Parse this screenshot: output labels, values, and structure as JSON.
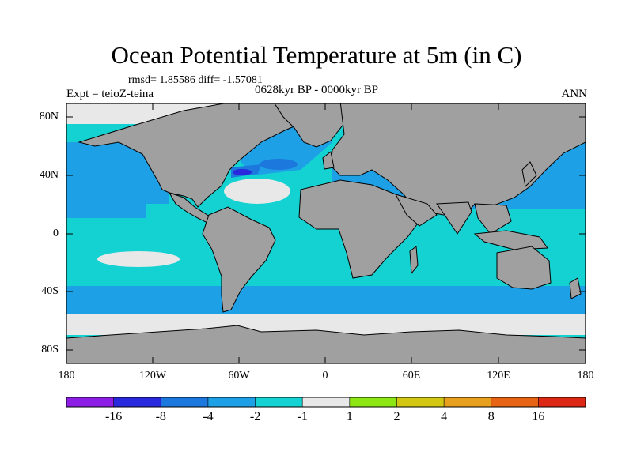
{
  "title": "Ocean Potential Temperature at 5m (in C)",
  "stats": "rmsd= 1.85586 diff= -1.57081",
  "period": "0628kyr BP - 0000kyr BP",
  "experiment": "Expt = teioZ-teina",
  "season": "ANN",
  "y_axis_labels": [
    "80N",
    "40N",
    "0",
    "40S",
    "80S"
  ],
  "x_axis_labels": [
    "180",
    "120W",
    "60W",
    "0",
    "60E",
    "120E",
    "180"
  ],
  "colorbar": {
    "labels": [
      "-16",
      "-8",
      "-4",
      "-2",
      "-1",
      "1",
      "2",
      "4",
      "8",
      "16"
    ],
    "colors": [
      "#8c1ee6",
      "#2828dc",
      "#1c78dc",
      "#1ea0e6",
      "#14d2d2",
      "#e8e8e8",
      "#8ce614",
      "#d2c814",
      "#e6a01e",
      "#e66414",
      "#dc2814"
    ]
  },
  "colors": {
    "land": "#a0a0a0",
    "ocean_main": "#14d2d2",
    "ocean_cool": "#1ea0e6",
    "near_zero": "#e8e8e8",
    "strong_cool": "#1c78dc",
    "deep_cool": "#2828dc",
    "warm": "#8ce614"
  }
}
